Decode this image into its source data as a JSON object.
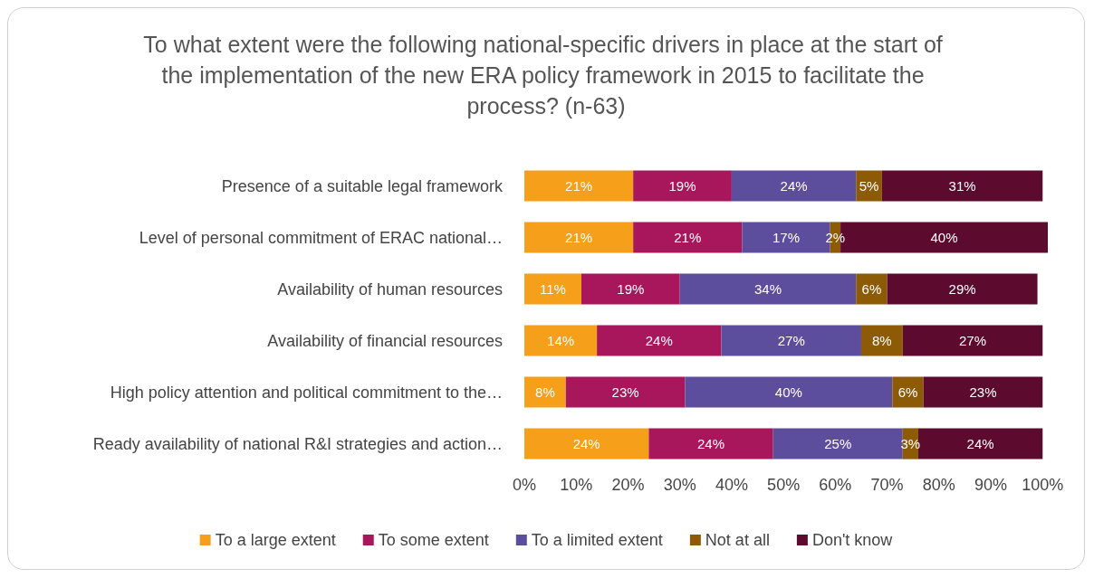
{
  "chart_data": {
    "type": "bar",
    "orientation": "horizontal",
    "stacked": true,
    "title": "To what extent were the following national-specific drivers in place at the start of the implementation of the new ERA policy framework in 2015 to facilitate the process? (n-63)",
    "categories": [
      "Presence of a suitable legal framework",
      "Level of personal commitment of ERAC national…",
      "Availability of human resources",
      "Availability of financial resources",
      "High policy attention and political commitment to the…",
      "Ready availability of national R&I strategies and action…"
    ],
    "series": [
      {
        "name": "To a large extent",
        "color": "#f59f1a",
        "values": [
          21,
          21,
          11,
          14,
          8,
          24
        ],
        "value_labels": [
          "21%",
          "21%",
          "11%",
          "14%",
          "8%",
          "24%"
        ]
      },
      {
        "name": "To some extent",
        "color": "#a8175b",
        "values": [
          19,
          21,
          19,
          24,
          23,
          24
        ],
        "value_labels": [
          "19%",
          "21%",
          "19%",
          "24%",
          "23%",
          "24%"
        ]
      },
      {
        "name": "To a limited extent",
        "color": "#5c4e9c",
        "values": [
          24,
          17,
          34,
          27,
          40,
          25
        ],
        "value_labels": [
          "24%",
          "17%",
          "34%",
          "27%",
          "40%",
          "25%"
        ]
      },
      {
        "name": "Not at all",
        "color": "#8d5a06",
        "values": [
          5,
          2,
          6,
          8,
          6,
          3
        ],
        "value_labels": [
          "5%",
          "2%",
          "6%",
          "8%",
          "6%",
          "3%"
        ]
      },
      {
        "name": "Don't know",
        "color": "#5c0a2e",
        "values": [
          31,
          40,
          29,
          27,
          23,
          24
        ],
        "value_labels": [
          "31%",
          "40%",
          "29%",
          "27%",
          "23%",
          "24%"
        ]
      }
    ],
    "xlim": [
      0,
      101
    ],
    "xticks": [
      {
        "value": 0,
        "label": "0%"
      },
      {
        "value": 10,
        "label": "10%"
      },
      {
        "value": 20,
        "label": "20%"
      },
      {
        "value": 30,
        "label": "30%"
      },
      {
        "value": 40,
        "label": "40%"
      },
      {
        "value": 50,
        "label": "50%"
      },
      {
        "value": 60,
        "label": "60%"
      },
      {
        "value": 70,
        "label": "70%"
      },
      {
        "value": 80,
        "label": "80%"
      },
      {
        "value": 90,
        "label": "90%"
      },
      {
        "value": 100,
        "label": "100%"
      }
    ],
    "legend": "bottom"
  }
}
